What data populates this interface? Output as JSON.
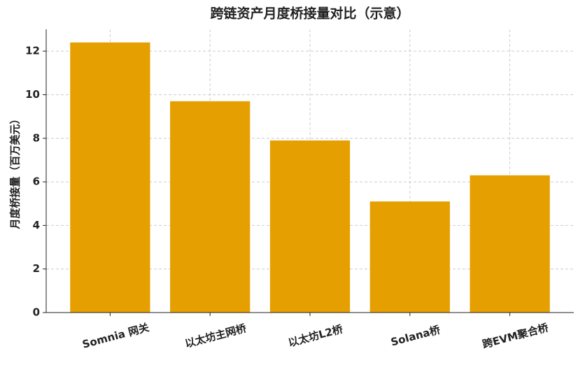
{
  "chart_data": {
    "type": "bar",
    "title": "跨链资产月度桥接量对比（示意）",
    "y_label": "月度桥接量（百万美元）",
    "categories": [
      "Somnia 网关",
      "以太坊主网桥",
      "以太坊L2桥",
      "Solana桥",
      "跨EVM聚合桥"
    ],
    "values": [
      12.4,
      9.7,
      7.9,
      5.1,
      6.3
    ],
    "color": "#e69f00",
    "ylim": [
      0,
      13
    ],
    "yticks": [
      0,
      2,
      4,
      6,
      8,
      10,
      12
    ],
    "grid": true
  }
}
